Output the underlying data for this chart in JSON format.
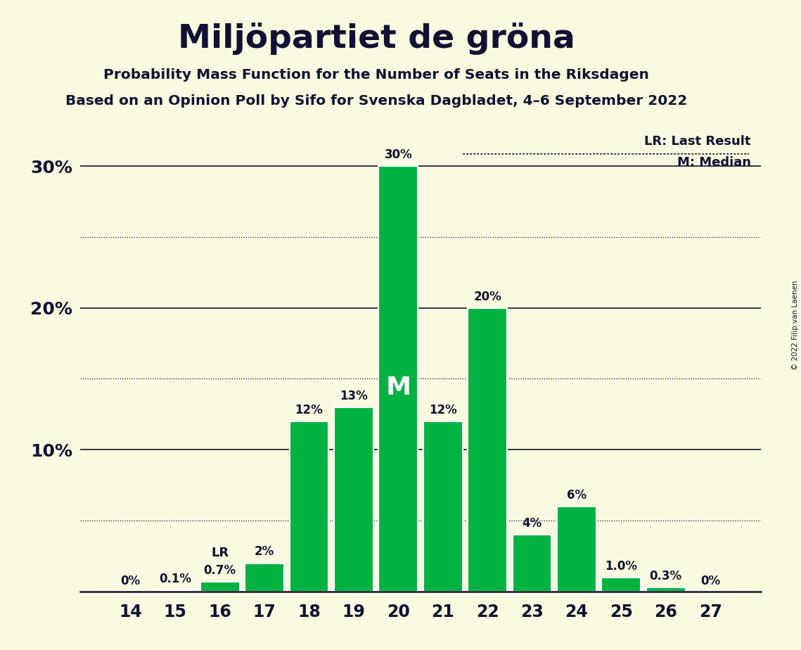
{
  "title": "Miljöpartiet de gröna",
  "subtitle1": "Probability Mass Function for the Number of Seats in the Riksdagen",
  "subtitle2": "Based on an Opinion Poll by Sifo for Svenska Dagbladet, 4–6 September 2022",
  "copyright": "© 2022 Filip van Laenen",
  "categories": [
    14,
    15,
    16,
    17,
    18,
    19,
    20,
    21,
    22,
    23,
    24,
    25,
    26,
    27
  ],
  "values": [
    0.0,
    0.1,
    0.7,
    2.0,
    12.0,
    13.0,
    30.0,
    12.0,
    20.0,
    4.0,
    6.0,
    1.0,
    0.3,
    0.0
  ],
  "labels": [
    "0%",
    "0.1%",
    "0.7%",
    "2%",
    "12%",
    "13%",
    "30%",
    "12%",
    "20%",
    "4%",
    "6%",
    "1.0%",
    "0.3%",
    "0%"
  ],
  "bar_color": "#00b341",
  "background_color": "#fafae0",
  "text_color": "#111133",
  "median_seat": 20,
  "lr_seat": 16,
  "ylim": [
    0,
    33
  ],
  "solid_lines": [
    10,
    20,
    30
  ],
  "dotted_lines": [
    5,
    15,
    25
  ],
  "ytick_positions": [
    10,
    20,
    30
  ],
  "ytick_labels": [
    "10%",
    "20%",
    "30%"
  ],
  "legend_lr": "LR: Last Result",
  "legend_m": "M: Median"
}
